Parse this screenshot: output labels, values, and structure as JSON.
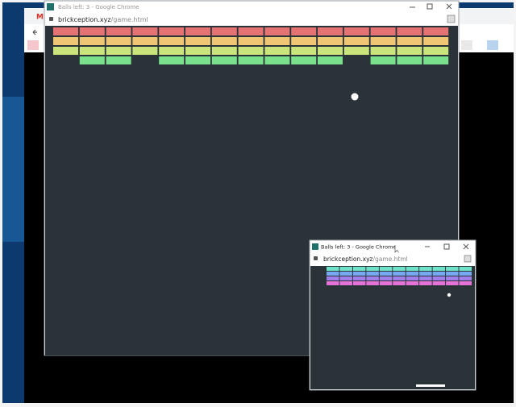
{
  "windows": [
    {
      "title": "Balls left: 3 - Google Chrome",
      "url_host": "brickception.xyz",
      "url_path": "/game.html"
    },
    {
      "title": "Balls left: 3 - Google Chrome",
      "url_host": "brickception.xyz",
      "url_path": "/game.html"
    }
  ]
}
